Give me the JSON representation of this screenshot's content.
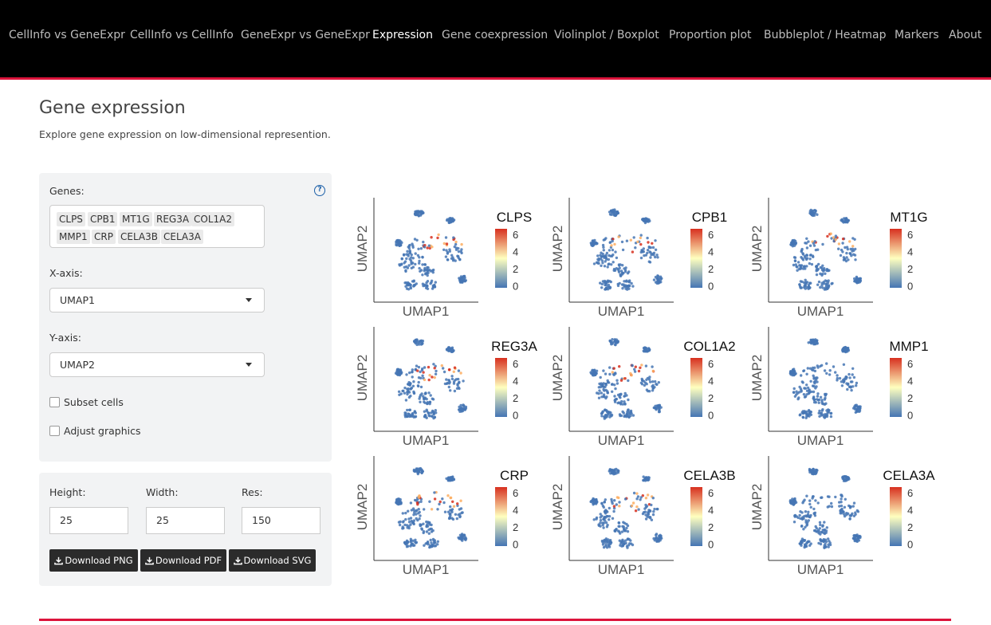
{
  "navbar": {
    "items": [
      {
        "label": "CellInfo vs GeneExpr",
        "active": false
      },
      {
        "label": "CellInfo vs CellInfo",
        "active": false
      },
      {
        "label": "GeneExpr vs GeneExpr",
        "active": false
      },
      {
        "label": "Expression",
        "active": true
      },
      {
        "label": "Gene coexpression",
        "active": false
      },
      {
        "label": "Violinplot / Boxplot",
        "active": false
      },
      {
        "label": "Proportion plot",
        "active": false
      },
      {
        "label": "Bubbleplot / Heatmap",
        "active": false
      },
      {
        "label": "Markers",
        "active": false
      },
      {
        "label": "About",
        "active": false
      }
    ],
    "accent_color": "#dc143c"
  },
  "page": {
    "title": "Gene expression",
    "subtitle": "Explore gene expression on low-dimensional represention."
  },
  "controls": {
    "genes_label": "Genes:",
    "help_icon": "?",
    "genes": [
      "CLPS",
      "CPB1",
      "MT1G",
      "REG3A",
      "COL1A2",
      "MMP1",
      "CRP",
      "CELA3B",
      "CELA3A"
    ],
    "xaxis_label": "X-axis:",
    "xaxis_value": "UMAP1",
    "yaxis_label": "Y-axis:",
    "yaxis_value": "UMAP2",
    "subset_label": "Subset cells",
    "subset_checked": false,
    "adjust_label": "Adjust graphics",
    "adjust_checked": false
  },
  "download": {
    "height_label": "Height:",
    "height_value": "25",
    "width_label": "Width:",
    "width_value": "25",
    "res_label": "Res:",
    "res_value": "150",
    "png_label": "Download PNG",
    "pdf_label": "Download PDF",
    "svg_label": "Download SVG",
    "icon": "download-icon"
  },
  "plots": {
    "xlabel": "UMAP1",
    "ylabel": "UMAP2",
    "panels": [
      {
        "gene": "CLPS",
        "ticks": [
          "6",
          "4",
          "2",
          "0"
        ]
      },
      {
        "gene": "CPB1",
        "ticks": [
          "6",
          "4",
          "2",
          "0"
        ]
      },
      {
        "gene": "MT1G",
        "ticks": [
          "6",
          "4",
          "2",
          "0"
        ]
      },
      {
        "gene": "REG3A",
        "ticks": [
          "6",
          "4",
          "2",
          "0"
        ]
      },
      {
        "gene": "COL1A2",
        "ticks": [
          "6",
          "4",
          "2",
          "0"
        ]
      },
      {
        "gene": "MMP1",
        "ticks": [
          "6",
          "4",
          "2",
          "0"
        ]
      },
      {
        "gene": "CRP",
        "ticks": [
          "6",
          "4",
          "2",
          "0"
        ]
      },
      {
        "gene": "CELA3B",
        "ticks": [
          "6",
          "4",
          "2",
          "0"
        ]
      },
      {
        "gene": "CELA3A",
        "ticks": [
          "6",
          "4",
          "2",
          "0"
        ]
      }
    ],
    "colors": {
      "high": "#d7301f",
      "mid": "#ffffbf",
      "low": "#4575b4"
    }
  }
}
